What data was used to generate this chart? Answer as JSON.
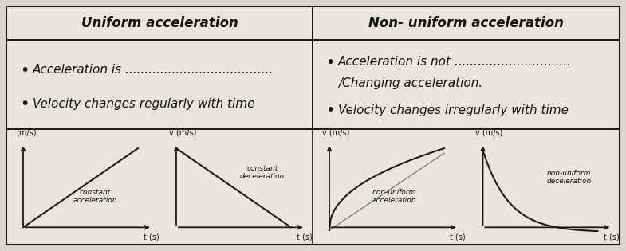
{
  "bg_color": "#d8d5d0",
  "cell_bg": "#e8e5e0",
  "border_color": "#555555",
  "title_left": "Uniform acceleration",
  "title_right": "Non- uniform acceleration",
  "bullet_left_1": "Acceleration is ",
  "bullet_left_dots": "......................................",
  "bullet_left_2": "Velocity changes regularly with time",
  "bullet_right_1": "Acceleration is not ",
  "bullet_right_dots": "..............................",
  "bullet_right_2a": "/Changing acceleration.",
  "bullet_right_3": "Velocity changes irregularly with time",
  "graph_label_v": "v (m/s)",
  "graph_label_v_left": "(m/s)",
  "graph_label_t": "t (s)",
  "label_const_acc": "constant\nacceleration",
  "label_const_dec": "constant\ndeceleration",
  "label_nonuni_acc": "non-uniform\nacceleration",
  "label_nonuni_dec": "non-uniform\ndeceleration",
  "line_color": "#1a1a1a",
  "text_color": "#111111",
  "font_size_title": 12,
  "font_size_body": 11,
  "font_size_graph": 7,
  "font_size_label": 6.5
}
